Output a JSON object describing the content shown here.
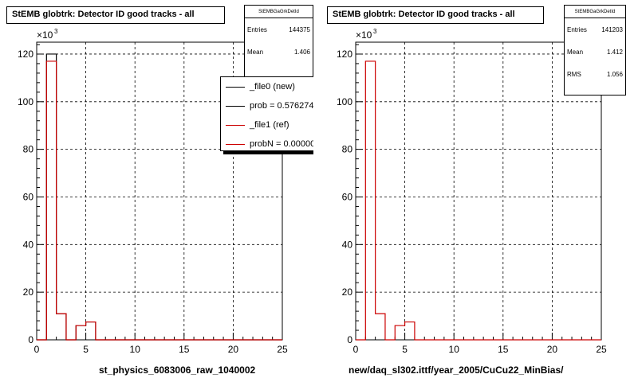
{
  "chart_data": [
    {
      "type": "bar",
      "title": "StEMB globtrk: Detector ID good tracks - all",
      "xlabel": "st_physics_6083006_raw_1040002",
      "ylabel": "",
      "y_multiplier_label": "×10",
      "y_multiplier_exp": "3",
      "xlim": [
        0,
        25
      ],
      "ylim": [
        0,
        125
      ],
      "bin_width": 1,
      "x_ticks": [
        "0",
        "5",
        "10",
        "15",
        "20",
        "25"
      ],
      "y_ticks": [
        "0",
        "20",
        "40",
        "60",
        "80",
        "100",
        "120"
      ],
      "grid": true,
      "series": [
        {
          "name": "_file0 (new)",
          "color": "#000000",
          "values": [
            0,
            120,
            11,
            0,
            6,
            7.5,
            0,
            0,
            0,
            0,
            0,
            0,
            0,
            0,
            0,
            0,
            0,
            0,
            0,
            0,
            0,
            0,
            0,
            0,
            0
          ]
        },
        {
          "name": "_file1 (ref)",
          "color": "#cc0000",
          "values": [
            0,
            117,
            11,
            0,
            6,
            7.5,
            0,
            0,
            0,
            0,
            0,
            0,
            0,
            0,
            0,
            0,
            0,
            0,
            0,
            0,
            0,
            0,
            0,
            0,
            0
          ]
        }
      ],
      "stats": {
        "header": "StEMBGaGrkDetId",
        "entries_label": "Entries",
        "entries": "144375",
        "mean_label": "Mean",
        "mean": "1.406"
      },
      "legend": {
        "placement": "top-right",
        "entries": [
          {
            "label": "_file0 (new)",
            "color": "#000000"
          },
          {
            "label": "prob = 0.576274",
            "color": "#000000"
          },
          {
            "label": "_file1 (ref)",
            "color": "#cc0000"
          },
          {
            "label": "probN = 0.000000",
            "color": "#cc0000"
          }
        ]
      }
    },
    {
      "type": "bar",
      "title": "StEMB globtrk: Detector ID good tracks - all",
      "xlabel": "new/daq_sl302.ittf/year_2005/CuCu22_MinBias/",
      "ylabel": "",
      "y_multiplier_label": "×10",
      "y_multiplier_exp": "3",
      "xlim": [
        0,
        25
      ],
      "ylim": [
        0,
        125
      ],
      "bin_width": 1,
      "x_ticks": [
        "0",
        "5",
        "10",
        "15",
        "20",
        "25"
      ],
      "y_ticks": [
        "0",
        "20",
        "40",
        "60",
        "80",
        "100",
        "120"
      ],
      "grid": true,
      "series": [
        {
          "name": "",
          "color": "#cc0000",
          "values": [
            0,
            117,
            11,
            0,
            6,
            7.5,
            0,
            0,
            0,
            0,
            0,
            0,
            0,
            0,
            0,
            0,
            0,
            0,
            0,
            0,
            0,
            0,
            0,
            0,
            0
          ]
        }
      ],
      "stats": {
        "header": "StEMBGaGrkDetId",
        "entries_label": "Entries",
        "entries": "141203",
        "mean_label": "Mean",
        "mean": "1.412",
        "rms_label": "RMS",
        "rms": "1.056"
      }
    }
  ]
}
